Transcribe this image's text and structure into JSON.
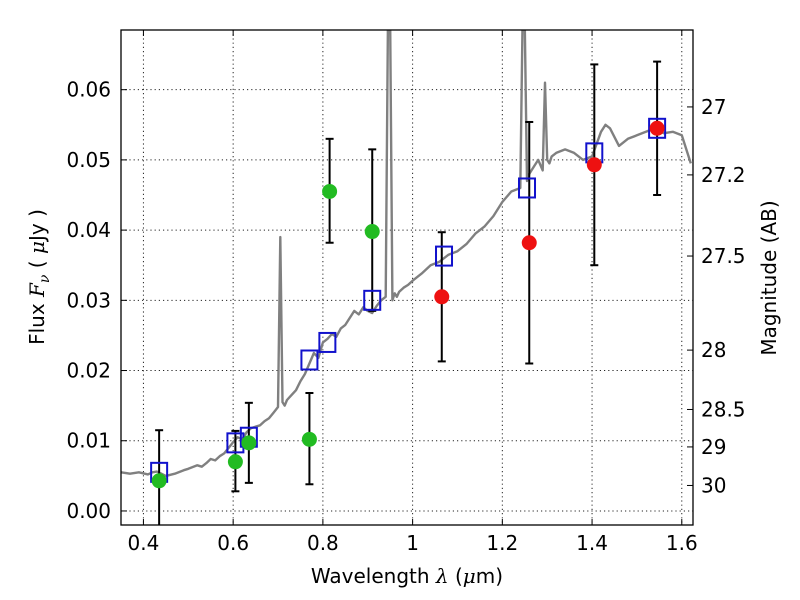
{
  "chart_data": {
    "type": "scatter",
    "xlabel": {
      "text": "Wavelength",
      "symbol": "λ",
      "unit_open": "(",
      "unit_mu": "μ",
      "unit_rest": "m)"
    },
    "ylabel": {
      "text": "Flux",
      "symbol": "F",
      "subscript": "ν",
      "unit_open": "(",
      "unit_mu": "μ",
      "unit_rest": "Jy )"
    },
    "y2label": "Magnitude (AB)",
    "xlim": [
      0.35,
      1.625
    ],
    "ylim": [
      -0.002,
      0.0685
    ],
    "grid": true,
    "x_ticks": [
      0.4,
      0.6,
      0.8,
      1.0,
      1.2,
      1.4,
      1.6
    ],
    "x_tick_labels": [
      "0.4",
      "0.6",
      "0.8",
      "1",
      "1.2",
      "1.4",
      "1.6"
    ],
    "y_ticks": [
      0.0,
      0.01,
      0.02,
      0.03,
      0.04,
      0.05,
      0.06
    ],
    "y_tick_labels": [
      "0.00",
      "0.01",
      "0.02",
      "0.03",
      "0.04",
      "0.05",
      "0.06"
    ],
    "y2_ticks": [
      27,
      27.2,
      27.5,
      28,
      28.5,
      29,
      30
    ],
    "y2_tick_labels": [
      "27",
      "27.2",
      "27.5",
      "28",
      "28.5",
      "29",
      "30"
    ],
    "colors": {
      "spectrum": "#808080",
      "green": "#22bb22",
      "red": "#ee1111",
      "model": "#1111cc",
      "errorbar": "#000000"
    },
    "spectrum": {
      "x": [
        0.35,
        0.37,
        0.39,
        0.41,
        0.42,
        0.43,
        0.44,
        0.45,
        0.47,
        0.49,
        0.5,
        0.52,
        0.53,
        0.54,
        0.55,
        0.56,
        0.57,
        0.58,
        0.59,
        0.6,
        0.61,
        0.62,
        0.63,
        0.64,
        0.65,
        0.66,
        0.67,
        0.68,
        0.69,
        0.7,
        0.705,
        0.71,
        0.715,
        0.72,
        0.73,
        0.74,
        0.75,
        0.76,
        0.77,
        0.78,
        0.79,
        0.8,
        0.81,
        0.82,
        0.83,
        0.84,
        0.85,
        0.86,
        0.87,
        0.88,
        0.89,
        0.9,
        0.91,
        0.92,
        0.93,
        0.94,
        0.945,
        0.95,
        0.955,
        0.96,
        0.965,
        0.97,
        0.98,
        0.99,
        1.0,
        1.02,
        1.04,
        1.06,
        1.08,
        1.1,
        1.12,
        1.14,
        1.16,
        1.18,
        1.2,
        1.22,
        1.24,
        1.245,
        1.25,
        1.255,
        1.26,
        1.27,
        1.28,
        1.29,
        1.295,
        1.3,
        1.305,
        1.31,
        1.32,
        1.34,
        1.36,
        1.38,
        1.4,
        1.42,
        1.43,
        1.44,
        1.46,
        1.48,
        1.5,
        1.52,
        1.54,
        1.56,
        1.58,
        1.6,
        1.62
      ],
      "y": [
        0.0055,
        0.0053,
        0.0055,
        0.0052,
        0.0055,
        0.0056,
        0.0053,
        0.005,
        0.0053,
        0.0058,
        0.006,
        0.0065,
        0.0063,
        0.0068,
        0.0074,
        0.0072,
        0.0078,
        0.0082,
        0.009,
        0.0098,
        0.0105,
        0.0102,
        0.0112,
        0.0118,
        0.012,
        0.0122,
        0.0128,
        0.0132,
        0.014,
        0.0148,
        0.039,
        0.0155,
        0.015,
        0.0158,
        0.0165,
        0.0172,
        0.0185,
        0.0195,
        0.021,
        0.0225,
        0.0218,
        0.024,
        0.0245,
        0.0252,
        0.0248,
        0.026,
        0.0265,
        0.0275,
        0.0285,
        0.028,
        0.029,
        0.0285,
        0.0282,
        0.0292,
        0.03,
        0.0305,
        0.069,
        0.069,
        0.03,
        0.031,
        0.0305,
        0.0312,
        0.0318,
        0.0322,
        0.0328,
        0.0338,
        0.035,
        0.0355,
        0.0365,
        0.037,
        0.038,
        0.0395,
        0.0405,
        0.042,
        0.044,
        0.0455,
        0.046,
        0.069,
        0.069,
        0.047,
        0.048,
        0.049,
        0.05,
        0.0485,
        0.061,
        0.05,
        0.0495,
        0.0505,
        0.051,
        0.0515,
        0.051,
        0.05,
        0.0505,
        0.054,
        0.055,
        0.0545,
        0.052,
        0.053,
        0.0535,
        0.054,
        0.0545,
        0.0538,
        0.054,
        0.0535,
        0.0495
      ]
    },
    "model_points": {
      "name": "",
      "x": [
        0.435,
        0.605,
        0.635,
        0.77,
        0.81,
        0.91,
        1.07,
        1.255,
        1.405,
        1.545
      ],
      "y": [
        0.0055,
        0.0097,
        0.0105,
        0.0215,
        0.024,
        0.03,
        0.0363,
        0.046,
        0.051,
        0.0545
      ]
    },
    "green_points": {
      "x": [
        0.435,
        0.605,
        0.635,
        0.77,
        0.815,
        0.91
      ],
      "y": [
        0.0043,
        0.007,
        0.0097,
        0.0102,
        0.0455,
        0.0398
      ],
      "err_low": [
        0.0105,
        0.0042,
        0.0057,
        0.0064,
        0.0073,
        0.0113
      ],
      "err_high": [
        0.0072,
        0.0044,
        0.0057,
        0.0066,
        0.0075,
        0.0117
      ]
    },
    "red_points": {
      "x": [
        1.065,
        1.26,
        1.405,
        1.545
      ],
      "y": [
        0.0305,
        0.0382,
        0.0493,
        0.0545
      ],
      "err_low": [
        0.0092,
        0.0172,
        0.0143,
        0.0095
      ],
      "err_high": [
        0.0092,
        0.0172,
        0.0143,
        0.0095
      ]
    }
  }
}
